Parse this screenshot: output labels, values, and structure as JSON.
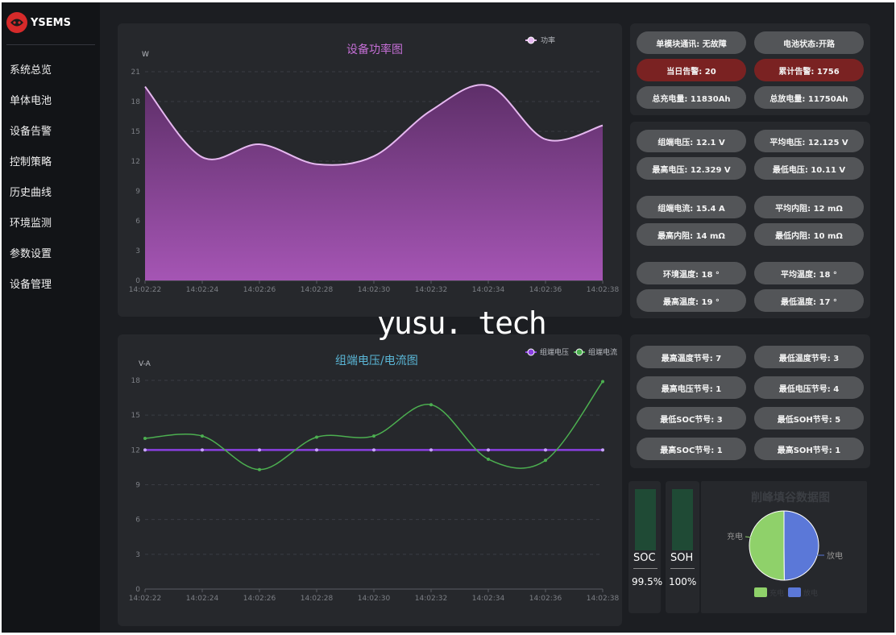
{
  "app": {
    "logo_text": "YSEMS"
  },
  "sidebar": {
    "items": [
      {
        "label": "系统总览"
      },
      {
        "label": "单体电池"
      },
      {
        "label": "设备告警"
      },
      {
        "label": "控制策略"
      },
      {
        "label": "历史曲线"
      },
      {
        "label": "环境监测"
      },
      {
        "label": "参数设置"
      },
      {
        "label": "设备管理"
      }
    ]
  },
  "watermark": "yusu. tech",
  "status_panel": {
    "comm": "单模块通讯: 无故障",
    "battery_state": "电池状态:开路",
    "today_alarm": "当日告警: 20",
    "total_alarm": "累计告警: 1756",
    "total_charge": "总充电量: 11830Ah",
    "total_discharge": "总放电量: 11750Ah"
  },
  "measure_panel": {
    "group_voltage": "组端电压: 12.1 V",
    "avg_voltage": "平均电压: 12.125 V",
    "max_voltage": "最高电压: 12.329 V",
    "min_voltage": "最低电压: 10.11 V",
    "group_current": "组端电流: 15.4 A",
    "avg_resistance": "平均内阻: 12 mΩ",
    "max_resistance": "最高内阻: 14 mΩ",
    "min_resistance": "最低内阻: 10 mΩ",
    "env_temp": "环境温度: 18 °",
    "avg_temp": "平均温度: 18 °",
    "max_temp": "最高温度: 19 °",
    "min_temp": "最低温度: 17 °"
  },
  "node_panel": {
    "max_temp_node": "最高温度节号: 7",
    "min_temp_node": "最低温度节号: 3",
    "max_volt_node": "最高电压节号: 1",
    "min_volt_node": "最低电压节号: 4",
    "min_soc_node": "最低SOC节号: 3",
    "min_soh_node": "最低SOH节号: 5",
    "max_soc_node": "最高SOC节号: 1",
    "max_soh_node": "最高SOH节号: 1"
  },
  "gauges": {
    "soc": {
      "label": "SOC",
      "value": "99.5%",
      "level": 0.995
    },
    "soh": {
      "label": "SOH",
      "value": "100%",
      "level": 1.0
    }
  },
  "colors": {
    "power_line": "#e6b8f0",
    "voltage_line": "#8a3fe0",
    "current_line": "#4caf50",
    "pie_charge": "#8fd16a",
    "pie_discharge": "#5b78d8",
    "alarm": "#7a2222"
  },
  "chart_data": [
    {
      "type": "area",
      "title": "设备功率图",
      "ylabel": "W",
      "legend": [
        "功率"
      ],
      "legend_position": "top-right",
      "x": [
        "14:02:22",
        "14:02:24",
        "14:02:26",
        "14:02:28",
        "14:02:30",
        "14:02:32",
        "14:02:34",
        "14:02:36",
        "14:02:38"
      ],
      "series": [
        {
          "name": "功率",
          "values": [
            19.5,
            12.4,
            13.7,
            11.7,
            12.5,
            17.1,
            19.6,
            14.2,
            15.6
          ]
        }
      ],
      "y_ticks": [
        0,
        3,
        6,
        9,
        12,
        15,
        18,
        21
      ],
      "ylim": [
        0,
        21
      ],
      "grid": true
    },
    {
      "type": "line",
      "title": "组端电压/电流图",
      "ylabel": "V-A",
      "legend": [
        "组端电压",
        "组端电流"
      ],
      "legend_position": "top-right",
      "x": [
        "14:02:22",
        "14:02:24",
        "14:02:26",
        "14:02:28",
        "14:02:30",
        "14:02:32",
        "14:02:34",
        "14:02:36",
        "14:02:38"
      ],
      "series": [
        {
          "name": "组端电压",
          "values": [
            12,
            12,
            12,
            12,
            12,
            12,
            12,
            12,
            12
          ]
        },
        {
          "name": "组端电流",
          "values": [
            13.0,
            13.2,
            10.3,
            13.1,
            13.2,
            15.9,
            11.2,
            11.1,
            17.9
          ]
        }
      ],
      "y_ticks": [
        0,
        3,
        6,
        9,
        12,
        15,
        18
      ],
      "ylim": [
        0,
        18
      ],
      "grid": true
    },
    {
      "type": "pie",
      "title": "削峰填谷数据图",
      "legend": [
        "充电",
        "放电"
      ],
      "legend_position": "bottom",
      "slices": [
        {
          "name": "充电",
          "value": 11830
        },
        {
          "name": "放电",
          "value": 11750
        }
      ]
    }
  ]
}
